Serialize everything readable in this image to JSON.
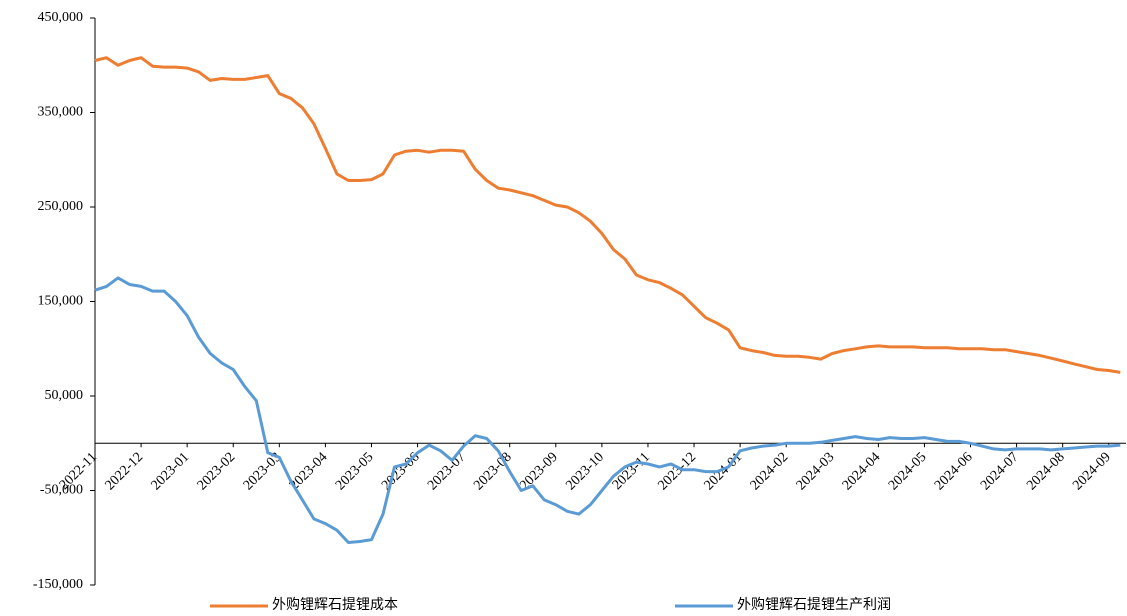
{
  "chart_data": {
    "type": "line",
    "categories": [
      "2022-11",
      null,
      null,
      null,
      "2022-12",
      null,
      null,
      null,
      "2023-01",
      null,
      null,
      null,
      "2023-02",
      null,
      null,
      null,
      "2023-03",
      null,
      null,
      null,
      "2023-04",
      null,
      null,
      null,
      "2023-05",
      null,
      null,
      null,
      "2023-06",
      null,
      null,
      null,
      "2023-07",
      null,
      null,
      null,
      "2023-08",
      null,
      null,
      null,
      "2023-09",
      null,
      null,
      null,
      "2023-10",
      null,
      null,
      null,
      "2023-11",
      null,
      null,
      null,
      "2023-12",
      null,
      null,
      null,
      "2024-01",
      null,
      null,
      null,
      "2024-02",
      null,
      null,
      null,
      "2024-03",
      null,
      null,
      null,
      "2024-04",
      null,
      null,
      null,
      "2024-05",
      null,
      null,
      null,
      "2024-06",
      null,
      null,
      null,
      "2024-07",
      null,
      null,
      null,
      "2024-08",
      null,
      null,
      null,
      "2024-09",
      null
    ],
    "series": [
      {
        "name": "外购锂辉石提锂成本",
        "color": "#ED7D31",
        "values": [
          405000,
          408000,
          400000,
          405000,
          408000,
          399000,
          398000,
          398000,
          397000,
          393000,
          384000,
          386000,
          385000,
          385000,
          387000,
          389000,
          370000,
          365000,
          355000,
          338000,
          312000,
          285000,
          278000,
          278000,
          279000,
          285000,
          305000,
          309000,
          310000,
          308000,
          310000,
          310000,
          309000,
          290000,
          278000,
          270000,
          268000,
          265000,
          262000,
          257000,
          252000,
          250000,
          244000,
          235000,
          222000,
          205000,
          195000,
          178000,
          173000,
          170000,
          164000,
          157000,
          145000,
          133000,
          127000,
          120000,
          101000,
          98000,
          96000,
          93000,
          92000,
          92000,
          91000,
          89000,
          95000,
          98000,
          100000,
          102000,
          103000,
          102000,
          102000,
          102000,
          101000,
          101000,
          101000,
          100000,
          100000,
          100000,
          99000,
          99000,
          97000,
          95000,
          93000,
          90000,
          87000,
          84000,
          81000,
          78000,
          77000,
          75000
        ]
      },
      {
        "name": "外购锂辉石提锂生产利润",
        "color": "#5B9BD5",
        "values": [
          162000,
          166000,
          175000,
          168000,
          166000,
          161000,
          161000,
          150000,
          135000,
          112000,
          95000,
          85000,
          78000,
          60000,
          45000,
          -10000,
          -15000,
          -40000,
          -60000,
          -80000,
          -85000,
          -92000,
          -105000,
          -104000,
          -102000,
          -75000,
          -25000,
          -22000,
          -10000,
          -2000,
          -8000,
          -18000,
          -3000,
          8000,
          5000,
          -8000,
          -30000,
          -50000,
          -45000,
          -60000,
          -65000,
          -72000,
          -75000,
          -65000,
          -50000,
          -35000,
          -25000,
          -20000,
          -22000,
          -25000,
          -22000,
          -28000,
          -28000,
          -30000,
          -30000,
          -25000,
          -8000,
          -5000,
          -3000,
          -2000,
          0,
          0,
          0,
          1000,
          3000,
          5000,
          7000,
          5000,
          4000,
          6000,
          5000,
          5000,
          6000,
          4000,
          2000,
          2000,
          0,
          -3000,
          -6000,
          -7000,
          -6000,
          -6000,
          -6000,
          -7000,
          -6000,
          -5000,
          -4000,
          -3000,
          -3000,
          -2000
        ]
      }
    ],
    "ylim": [
      -150000,
      450000
    ],
    "yticks": [
      {
        "value": -150000,
        "label": "-150,000"
      },
      {
        "value": -50000,
        "label": "-50,000"
      },
      {
        "value": 50000,
        "label": "50,000"
      },
      {
        "value": 150000,
        "label": "150,000"
      },
      {
        "value": 250000,
        "label": "250,000"
      },
      {
        "value": 350000,
        "label": "350,000"
      },
      {
        "value": 450000,
        "label": "450,000"
      }
    ],
    "grid": false,
    "legend": "bottom"
  }
}
